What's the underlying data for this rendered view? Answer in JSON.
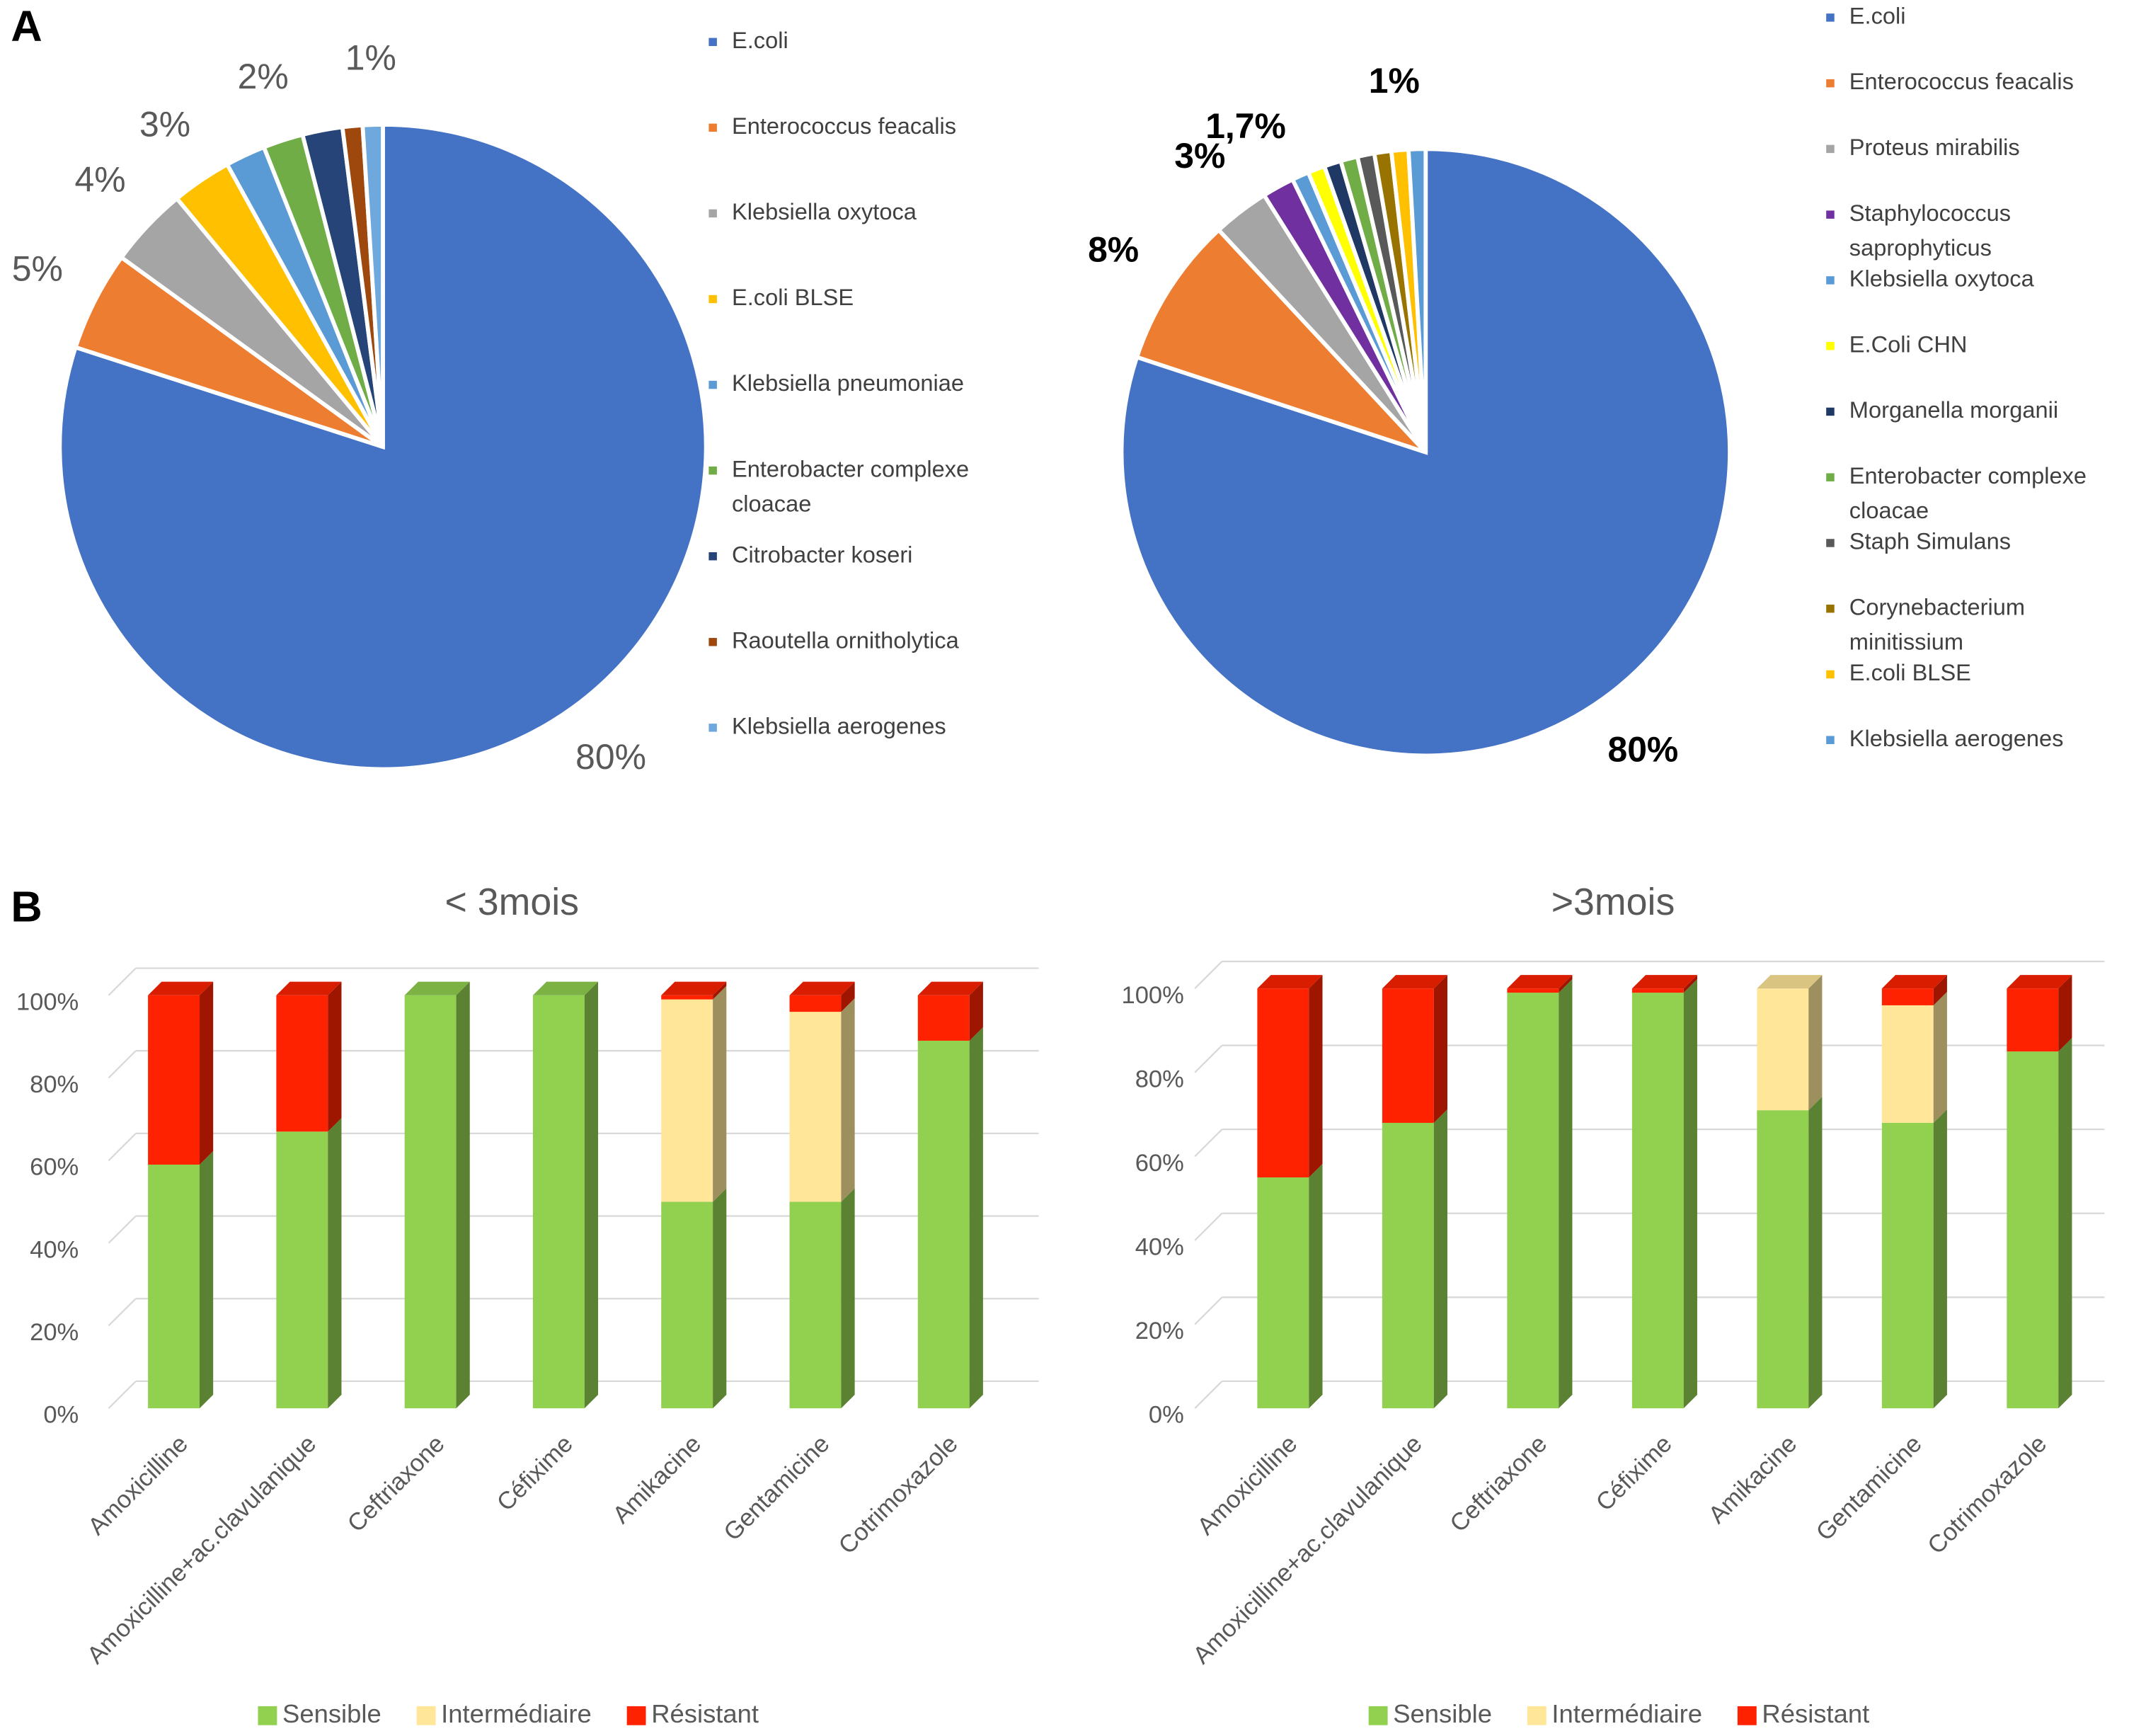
{
  "panels": [
    "A",
    "B"
  ],
  "chart_data": [
    {
      "type": "pie",
      "categories": [
        "E.coli",
        "Enterococcus feacalis",
        "Klebsiella oxytoca",
        "E.coli BLSE",
        "Klebsiella pneumoniae",
        "Enterobacter complexe cloacae",
        "Citrobacter koseri",
        "Raoutella ornitholytica",
        "Klebsiella aerogenes"
      ],
      "values": [
        80,
        5,
        4,
        3,
        2,
        2,
        2,
        1,
        1
      ],
      "value_labels": [
        "80%",
        "5%",
        "4%",
        "3%",
        null,
        "2%",
        null,
        null,
        "1%"
      ],
      "colors": [
        "#4472c4",
        "#ed7d31",
        "#a5a5a5",
        "#ffc000",
        "#5b9bd5",
        "#70ad47",
        "#264478",
        "#9e480e",
        "#6fa8dc"
      ]
    },
    {
      "type": "pie",
      "categories": [
        "E.coli",
        "Enterococcus feacalis",
        "Proteus mirabilis",
        "Staphylococcus saprophyticus",
        "Klebsiella oxytoca",
        "E.Coli CHN",
        "Morganella morganii",
        "Enterobacter complexe cloacae",
        "Staph Simulans",
        "Corynebacterium minitissium",
        "E.coli BLSE",
        "Klebsiella aerogenes"
      ],
      "values": [
        80,
        8,
        3,
        1.7,
        0.9,
        0.9,
        0.9,
        0.9,
        0.9,
        0.9,
        0.9,
        0.9
      ],
      "value_labels": [
        "80%",
        "8%",
        "3%",
        "1,7%",
        null,
        null,
        null,
        null,
        null,
        null,
        "1%",
        null
      ],
      "colors": [
        "#4472c4",
        "#ed7d31",
        "#a5a5a5",
        "#7030a0",
        "#5b9bd5",
        "#ffff00",
        "#1f3864",
        "#70ad47",
        "#595959",
        "#997300",
        "#ffc000",
        "#5b9bd5"
      ]
    },
    {
      "type": "bar",
      "stacked": true,
      "title": "< 3mois",
      "categories": [
        "Amoxicilline",
        "Amoxicilline+ac.clavulanique",
        "Ceftriaxone",
        "Céfixime",
        "Amikacine",
        "Gentamicine",
        "Cotrimoxazole"
      ],
      "series": [
        {
          "name": "Sensible",
          "color": "#92d050",
          "values": [
            59,
            67,
            100,
            100,
            50,
            50,
            89
          ]
        },
        {
          "name": "Intermédiaire",
          "color": "#ffe699",
          "values": [
            0,
            0,
            0,
            0,
            49,
            46,
            0
          ]
        },
        {
          "name": "Résistant",
          "color": "#ff2200",
          "values": [
            41,
            33,
            0,
            0,
            1,
            4,
            11
          ]
        }
      ],
      "ylim": [
        0,
        100
      ],
      "yticks": [
        {
          "value": 0,
          "label": "0%"
        },
        {
          "value": 20,
          "label": "20%"
        },
        {
          "value": 40,
          "label": "40%"
        },
        {
          "value": 60,
          "label": "60%"
        },
        {
          "value": 80,
          "label": "80%"
        },
        {
          "value": 100,
          "label": "100%"
        }
      ],
      "grid": true,
      "legend": "bottom"
    },
    {
      "type": "bar",
      "stacked": true,
      "title": ">3mois",
      "categories": [
        "Amoxicilline",
        "Amoxicilline+ac.clavulanique",
        "Ceftriaxone",
        "Céfixime",
        "Amikacine",
        "Gentamicine",
        "Cotrimoxazole"
      ],
      "series": [
        {
          "name": "Sensible",
          "color": "#92d050",
          "values": [
            55,
            68,
            99,
            99,
            71,
            68,
            85
          ]
        },
        {
          "name": "Intermédiaire",
          "color": "#ffe699",
          "values": [
            0,
            0,
            0,
            0,
            29,
            28,
            0
          ]
        },
        {
          "name": "Résistant",
          "color": "#ff2200",
          "values": [
            45,
            32,
            1,
            1,
            0,
            4,
            15
          ]
        }
      ],
      "ylim": [
        0,
        100
      ],
      "yticks": [
        {
          "value": 0,
          "label": "0%"
        },
        {
          "value": 20,
          "label": "20%"
        },
        {
          "value": 40,
          "label": "40%"
        },
        {
          "value": 60,
          "label": "60%"
        },
        {
          "value": 80,
          "label": "80%"
        },
        {
          "value": 100,
          "label": "100%"
        }
      ],
      "grid": true,
      "legend": "bottom"
    }
  ]
}
